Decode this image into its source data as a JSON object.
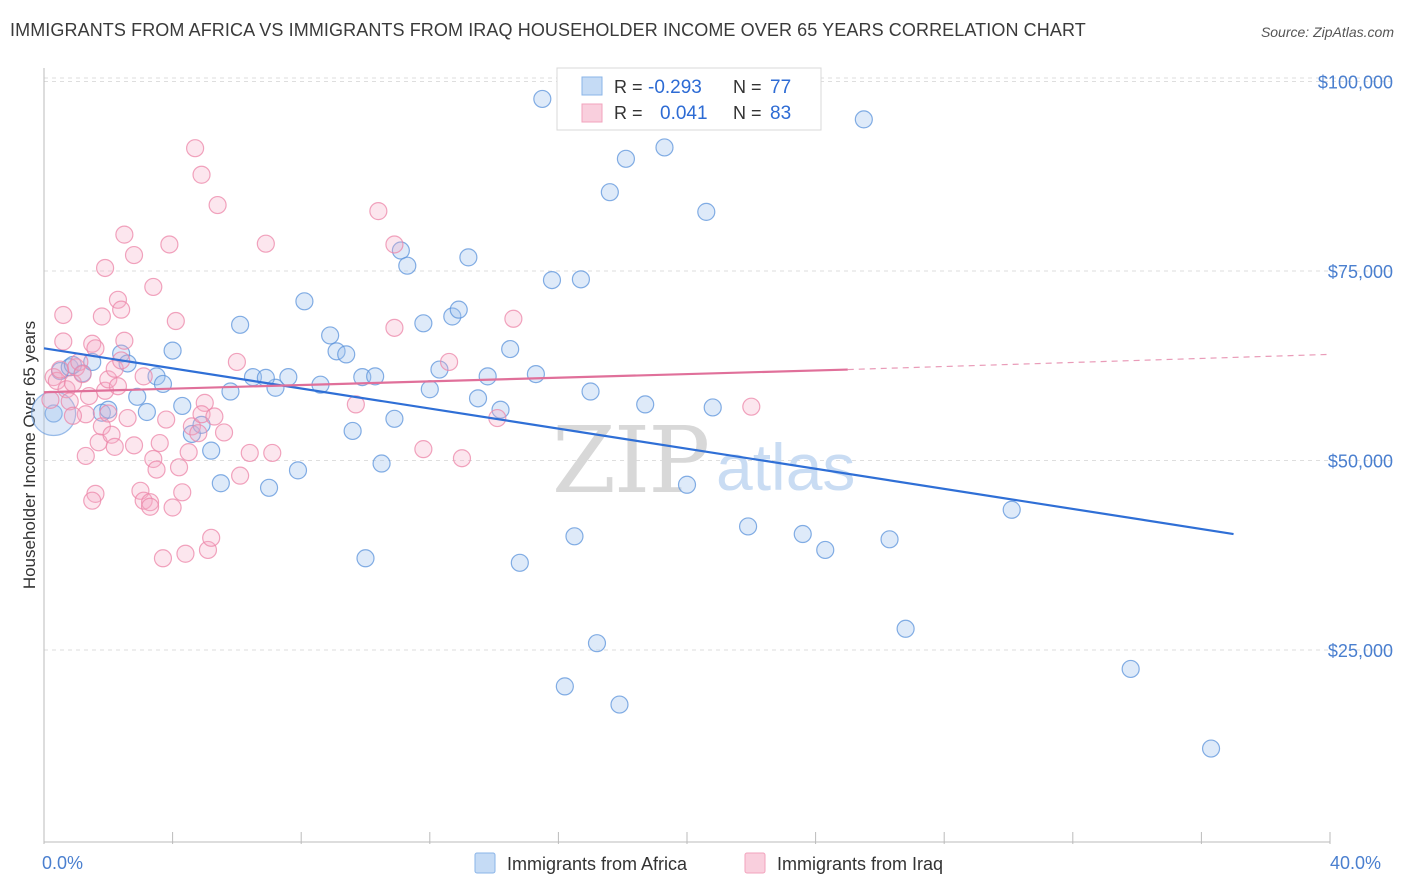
{
  "title": "IMMIGRANTS FROM AFRICA VS IMMIGRANTS FROM IRAQ HOUSEHOLDER INCOME OVER 65 YEARS CORRELATION CHART",
  "source": "Source: ZipAtlas.com",
  "watermark": {
    "zip": "ZIP",
    "atlas": "atlas"
  },
  "legend": {
    "r_label": "R =",
    "n_label": "N =",
    "rows": [
      {
        "r": "-0.293",
        "n": "77",
        "color": "#8ab4e8"
      },
      {
        "r": "0.041",
        "n": "83",
        "color": "#f2a3bd"
      }
    ]
  },
  "bottom_legend": [
    {
      "label": "Immigrants from Africa",
      "color": "#8ab4e8"
    },
    {
      "label": "Immigrants from Iraq",
      "color": "#f2a3bd"
    }
  ],
  "chart_data": {
    "type": "scatter",
    "ylabel": "Householder Income Over 65 years",
    "xlim": [
      0,
      40
    ],
    "ylim": [
      0,
      105000
    ],
    "x_tick_labels": [
      "0.0%",
      "40.0%"
    ],
    "y_ticks": [
      25000,
      50000,
      75000,
      100000
    ],
    "y_tick_labels": [
      "$25,000",
      "$50,000",
      "$75,000",
      "$100,000"
    ],
    "grid": true,
    "colors": {
      "africa": "#5b93db",
      "iraq": "#ec86a8",
      "africa_line": "#2f6fd6",
      "iraq_line": "#e0709a"
    },
    "series": [
      {
        "name": "Immigrants from Africa",
        "trend": {
          "x": [
            0,
            37
          ],
          "y": [
            64800,
            40300
          ]
        },
        "points": [
          [
            0.3,
            56200
          ],
          [
            0.5,
            61800
          ],
          [
            0.8,
            62300
          ],
          [
            1.2,
            61500
          ],
          [
            1.5,
            63000
          ],
          [
            1.8,
            56300
          ],
          [
            2.0,
            56700
          ],
          [
            2.4,
            64100
          ],
          [
            2.6,
            62800
          ],
          [
            2.9,
            58400
          ],
          [
            3.2,
            56400
          ],
          [
            3.5,
            61100
          ],
          [
            3.7,
            60100
          ],
          [
            4.0,
            64500
          ],
          [
            4.3,
            57200
          ],
          [
            4.6,
            53500
          ],
          [
            4.9,
            54700
          ],
          [
            5.2,
            51300
          ],
          [
            5.5,
            47000
          ],
          [
            5.8,
            59100
          ],
          [
            6.1,
            67900
          ],
          [
            6.5,
            61000
          ],
          [
            7.0,
            46400
          ],
          [
            7.2,
            59600
          ],
          [
            7.6,
            61000
          ],
          [
            7.9,
            48700
          ],
          [
            8.1,
            71000
          ],
          [
            8.6,
            60000
          ],
          [
            8.9,
            66500
          ],
          [
            9.1,
            64400
          ],
          [
            9.4,
            64000
          ],
          [
            9.6,
            53900
          ],
          [
            9.9,
            61000
          ],
          [
            10.3,
            61100
          ],
          [
            10.0,
            37100
          ],
          [
            10.5,
            49600
          ],
          [
            10.9,
            55500
          ],
          [
            11.1,
            77700
          ],
          [
            11.3,
            75700
          ],
          [
            11.8,
            68100
          ],
          [
            12.0,
            59400
          ],
          [
            12.3,
            62000
          ],
          [
            12.7,
            69000
          ],
          [
            12.9,
            69900
          ],
          [
            13.2,
            76800
          ],
          [
            13.5,
            58200
          ],
          [
            13.8,
            61100
          ],
          [
            14.2,
            56700
          ],
          [
            14.5,
            64700
          ],
          [
            14.8,
            36500
          ],
          [
            15.3,
            61400
          ],
          [
            15.5,
            97700
          ],
          [
            15.8,
            73800
          ],
          [
            16.2,
            20200
          ],
          [
            16.5,
            40000
          ],
          [
            16.7,
            73900
          ],
          [
            17.0,
            59100
          ],
          [
            17.2,
            25900
          ],
          [
            17.6,
            85400
          ],
          [
            18.1,
            89800
          ],
          [
            17.9,
            17800
          ],
          [
            18.7,
            57400
          ],
          [
            19.3,
            91300
          ],
          [
            20.0,
            46800
          ],
          [
            20.6,
            82800
          ],
          [
            20.8,
            57000
          ],
          [
            21.9,
            41300
          ],
          [
            23.6,
            40300
          ],
          [
            24.3,
            38200
          ],
          [
            25.5,
            95000
          ],
          [
            26.3,
            39600
          ],
          [
            26.8,
            27800
          ],
          [
            30.1,
            43500
          ],
          [
            33.8,
            22500
          ],
          [
            36.3,
            12000
          ],
          [
            0.9,
            62600
          ],
          [
            6.9,
            60900
          ]
        ]
      },
      {
        "name": "Immigrants from Iraq",
        "trend": {
          "x": [
            0,
            25
          ],
          "y": [
            59000,
            62000
          ]
        },
        "trend_dash": {
          "x": [
            25,
            40
          ],
          "y": [
            62000,
            64000
          ]
        },
        "points": [
          [
            0.2,
            58000
          ],
          [
            0.3,
            61000
          ],
          [
            0.4,
            60500
          ],
          [
            0.5,
            62000
          ],
          [
            0.6,
            65700
          ],
          [
            0.7,
            59400
          ],
          [
            0.8,
            57800
          ],
          [
            0.9,
            60200
          ],
          [
            1.0,
            62300
          ],
          [
            1.1,
            63000
          ],
          [
            1.2,
            61400
          ],
          [
            1.3,
            56100
          ],
          [
            1.4,
            58500
          ],
          [
            1.5,
            65400
          ],
          [
            1.6,
            64800
          ],
          [
            1.7,
            52400
          ],
          [
            1.8,
            54500
          ],
          [
            1.9,
            59200
          ],
          [
            2.0,
            60700
          ],
          [
            2.1,
            53400
          ],
          [
            2.2,
            62100
          ],
          [
            2.3,
            59800
          ],
          [
            2.4,
            63200
          ],
          [
            2.5,
            65800
          ],
          [
            2.6,
            55600
          ],
          [
            0.6,
            69200
          ],
          [
            1.8,
            69000
          ],
          [
            1.9,
            75400
          ],
          [
            2.3,
            71200
          ],
          [
            2.4,
            69900
          ],
          [
            2.5,
            79800
          ],
          [
            2.8,
            77100
          ],
          [
            3.0,
            46000
          ],
          [
            3.1,
            44700
          ],
          [
            3.3,
            44500
          ],
          [
            3.4,
            50200
          ],
          [
            3.5,
            48800
          ],
          [
            3.6,
            52300
          ],
          [
            3.7,
            37100
          ],
          [
            3.8,
            55400
          ],
          [
            3.9,
            78500
          ],
          [
            4.0,
            43800
          ],
          [
            4.1,
            68400
          ],
          [
            4.2,
            49100
          ],
          [
            4.3,
            45800
          ],
          [
            4.4,
            37700
          ],
          [
            4.5,
            51100
          ],
          [
            4.6,
            54500
          ],
          [
            4.7,
            91200
          ],
          [
            4.8,
            53600
          ],
          [
            4.9,
            87700
          ],
          [
            5.0,
            57600
          ],
          [
            5.1,
            38200
          ],
          [
            5.2,
            39800
          ],
          [
            5.4,
            83700
          ],
          [
            5.6,
            53700
          ],
          [
            6.0,
            63000
          ],
          [
            6.4,
            51000
          ],
          [
            6.9,
            78600
          ],
          [
            7.1,
            51000
          ],
          [
            1.6,
            45600
          ],
          [
            1.5,
            44700
          ],
          [
            2.8,
            52000
          ],
          [
            3.1,
            61100
          ],
          [
            3.4,
            72900
          ],
          [
            9.7,
            57400
          ],
          [
            10.4,
            82900
          ],
          [
            10.9,
            78500
          ],
          [
            10.9,
            67500
          ],
          [
            11.8,
            51500
          ],
          [
            12.6,
            63000
          ],
          [
            13.0,
            50300
          ],
          [
            14.1,
            55600
          ],
          [
            14.6,
            68700
          ],
          [
            22.0,
            57100
          ],
          [
            0.9,
            55900
          ],
          [
            1.3,
            50600
          ],
          [
            2.0,
            56200
          ],
          [
            2.2,
            51800
          ],
          [
            3.3,
            43900
          ],
          [
            4.9,
            56100
          ],
          [
            5.3,
            55800
          ],
          [
            6.1,
            48000
          ]
        ]
      }
    ]
  }
}
